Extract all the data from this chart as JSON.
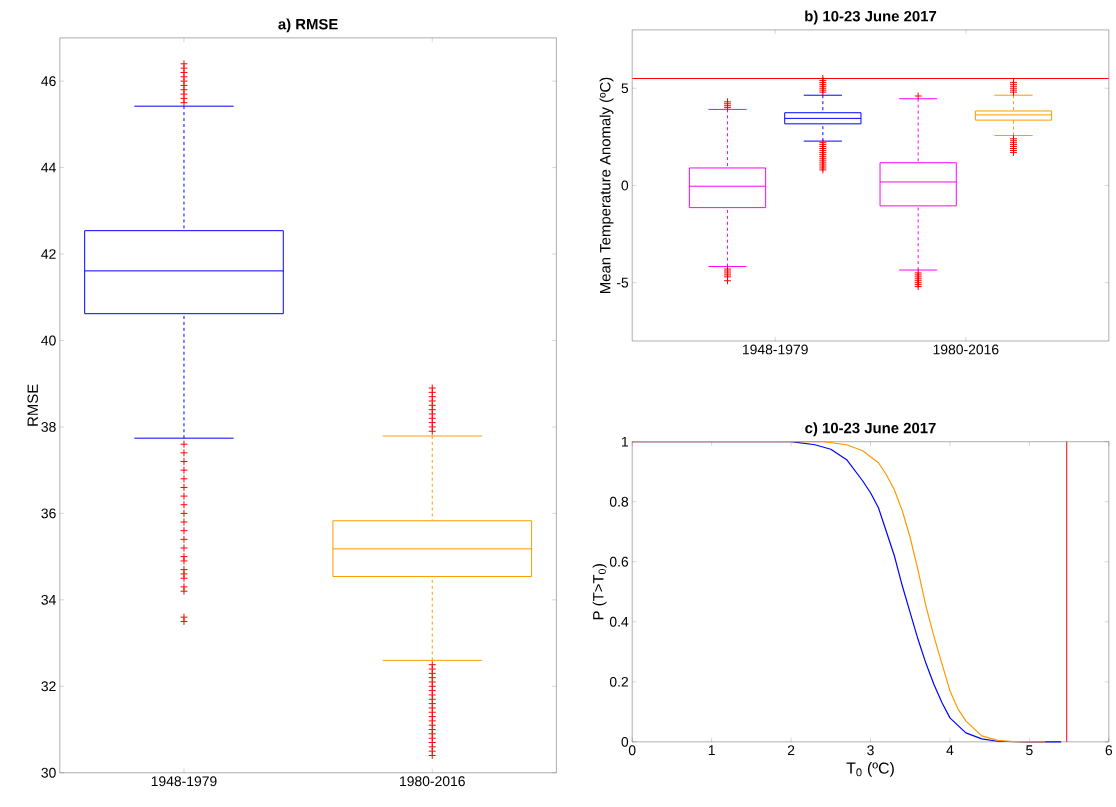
{
  "chart_data": [
    {
      "type": "box",
      "title": "a) RMSE",
      "ylabel": "RMSE",
      "categories": [
        "1948-1979",
        "1980-2016"
      ],
      "colors": [
        "#0000ff",
        "#ff9900"
      ],
      "ylim": [
        30,
        47
      ],
      "yticks": [
        30,
        32,
        34,
        36,
        38,
        40,
        42,
        44,
        46
      ],
      "boxes": [
        {
          "low": 37.74,
          "q1": 40.62,
          "median": 41.61,
          "q3": 42.54,
          "high": 45.42,
          "outliers": [
            45.5,
            45.6,
            45.7,
            45.8,
            45.9,
            46.0,
            46.1,
            46.2,
            46.3,
            46.4,
            37.6,
            37.4,
            37.2,
            37.0,
            36.8,
            36.6,
            36.4,
            36.2,
            36.0,
            35.8,
            35.6,
            35.4,
            35.2,
            35.0,
            34.9,
            34.7,
            34.6,
            34.5,
            34.3,
            34.2,
            33.6,
            33.5
          ]
        },
        {
          "low": 32.6,
          "q1": 34.54,
          "median": 35.18,
          "q3": 35.83,
          "high": 37.79,
          "outliers": [
            37.9,
            38.0,
            38.1,
            38.2,
            38.3,
            38.4,
            38.5,
            38.6,
            38.7,
            38.8,
            38.9,
            32.5,
            32.4,
            32.3,
            32.2,
            32.1,
            32.0,
            31.9,
            31.8,
            31.7,
            31.6,
            31.5,
            31.4,
            31.3,
            31.2,
            31.1,
            31.0,
            30.9,
            30.8,
            30.7,
            30.6,
            30.5,
            30.4
          ]
        }
      ]
    },
    {
      "type": "box",
      "title": "b) 10-23 June 2017",
      "ylabel": "Mean Temperature Anomaly (ºC)",
      "categories": [
        "1948-1979",
        "1980-2016"
      ],
      "ylim": [
        -8,
        8
      ],
      "yticks": [
        -5,
        0,
        5
      ],
      "series": [
        {
          "color": "#ff00ff",
          "boxes": [
            {
              "low": -4.17,
              "q1": -1.14,
              "median": -0.04,
              "q3": 0.9,
              "high": 3.91,
              "outliers": [
                4.0,
                4.1,
                4.2,
                4.3,
                -4.3,
                -4.4,
                -4.5,
                -4.6,
                -4.7,
                -4.9
              ]
            },
            {
              "low": -4.35,
              "q1": -1.05,
              "median": 0.18,
              "q3": 1.17,
              "high": 4.46,
              "outliers": [
                4.6,
                -4.5,
                -4.6,
                -4.7,
                -4.8,
                -4.9,
                -5.0,
                -5.1,
                -5.2
              ]
            }
          ]
        },
        {
          "colors": [
            "#0000ff",
            "#ff9900"
          ],
          "boxes": [
            {
              "low": 2.28,
              "q1": 3.17,
              "median": 3.45,
              "q3": 3.74,
              "high": 4.64,
              "outliers": [
                4.8,
                4.9,
                5.0,
                5.1,
                5.2,
                5.3,
                5.4,
                5.5,
                2.2,
                2.1,
                2.0,
                1.9,
                1.8,
                1.7,
                1.6,
                1.5,
                1.4,
                1.3,
                1.2,
                1.1,
                1.0,
                0.9,
                0.8
              ]
            },
            {
              "low": 2.57,
              "q1": 3.36,
              "median": 3.63,
              "q3": 3.83,
              "high": 4.64,
              "outliers": [
                4.8,
                4.9,
                5.0,
                5.1,
                5.2,
                5.3,
                2.4,
                2.3,
                2.2,
                2.1,
                2.0,
                1.9,
                1.8,
                1.7
              ]
            }
          ]
        }
      ],
      "ref_lines": [
        {
          "axis": "y",
          "value": 5.5,
          "color": "#ff0000"
        }
      ]
    },
    {
      "type": "line",
      "title": "c) 10-23 June 2017",
      "xlabel": "T$_{0}$ (ºC)",
      "ylabel": "P (T>T$_{0}$)",
      "xlim": [
        0,
        6
      ],
      "ylim": [
        0,
        1
      ],
      "xticks": [
        0,
        1,
        2,
        3,
        4,
        5,
        6
      ],
      "yticks": [
        0,
        0.2,
        0.4,
        0.6,
        0.8,
        1
      ],
      "series": [
        {
          "color": "#0000ff",
          "x": [
            0,
            2.0,
            2.3,
            2.5,
            2.7,
            2.9,
            3.0,
            3.1,
            3.2,
            3.3,
            3.4,
            3.5,
            3.6,
            3.7,
            3.8,
            3.9,
            4.0,
            4.2,
            4.4,
            4.6,
            5.0,
            5.4
          ],
          "values": [
            1,
            1,
            0.99,
            0.975,
            0.94,
            0.87,
            0.83,
            0.78,
            0.7,
            0.62,
            0.52,
            0.43,
            0.34,
            0.26,
            0.19,
            0.13,
            0.08,
            0.03,
            0.01,
            0.002,
            0,
            0
          ]
        },
        {
          "color": "#ff9900",
          "x": [
            0,
            2.4,
            2.7,
            2.9,
            3.1,
            3.2,
            3.3,
            3.4,
            3.5,
            3.6,
            3.7,
            3.8,
            3.9,
            4.0,
            4.1,
            4.2,
            4.4,
            4.6,
            4.8,
            5.2
          ],
          "values": [
            1,
            1,
            0.99,
            0.97,
            0.93,
            0.89,
            0.84,
            0.77,
            0.68,
            0.57,
            0.45,
            0.35,
            0.26,
            0.17,
            0.11,
            0.07,
            0.02,
            0.005,
            0.001,
            0
          ]
        }
      ],
      "ref_lines": [
        {
          "axis": "x",
          "value": 5.47,
          "color": "#ff0000"
        }
      ]
    }
  ]
}
